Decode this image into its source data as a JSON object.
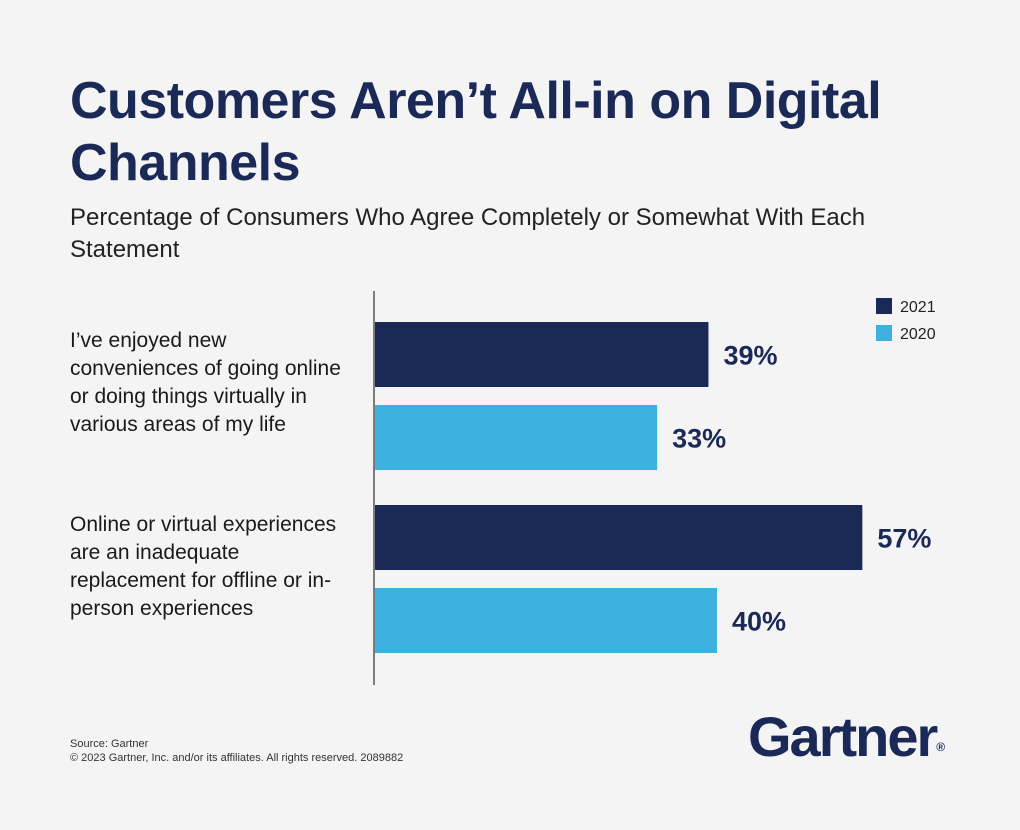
{
  "title": "Customers Aren’t All-in on Digital Channels",
  "subtitle": "Percentage of Consumers Who Agree Completely or Somewhat With Each Statement",
  "source": "Source: Gartner",
  "copyright": "© 2023 Gartner, Inc. and/or its affiliates. All rights reserved. 2089882",
  "logo_text": "Gartner",
  "logo_mark": "®",
  "colors": {
    "2021": "#1b2957",
    "2020": "#3fb1e0",
    "title": "#1b2957"
  },
  "chart_data": {
    "type": "bar",
    "orientation": "horizontal",
    "categories": [
      "I’ve enjoyed new conveniences of going online or doing things virtually in various areas of my life",
      "Online or virtual experiences are an inadequate replacement for offline or in-person experiences"
    ],
    "series": [
      {
        "name": "2021",
        "values": [
          39,
          57
        ],
        "labels": [
          "39%",
          "57%"
        ],
        "color": "#1b2957"
      },
      {
        "name": "2020",
        "values": [
          33,
          40
        ],
        "labels": [
          "33%",
          "40%"
        ],
        "color": "#3fb1e0"
      }
    ],
    "legend": "top-right",
    "grid": false,
    "xlim": [
      0,
      100
    ]
  }
}
